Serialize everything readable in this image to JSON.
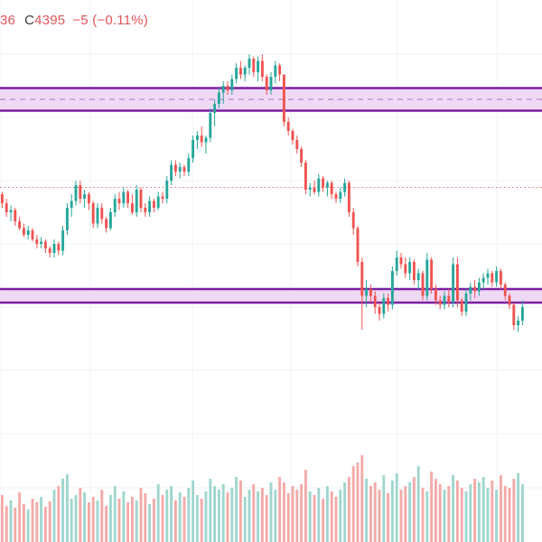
{
  "legend": {
    "partial": "36",
    "close_key": "C",
    "close_value": "4395",
    "change": "−5",
    "change_pct": "(−0.11%)"
  },
  "colors": {
    "up": "#26a69a",
    "down": "#ef5350",
    "volume_up": "#9fd6cf",
    "volume_down": "#f4aaa8",
    "zone_fill": "#f0d9f5",
    "zone_border": "#7b1fa2",
    "grid": "#eef0f4",
    "price_line": "#e57373"
  },
  "chart_data": {
    "type": "candlestick",
    "y_range": [
      4300,
      4460
    ],
    "x_index_range": [
      0,
      124
    ],
    "zones": [
      {
        "top": 4437,
        "bottom": 4427,
        "mid": 4432
      },
      {
        "top": 4348,
        "bottom": 4342
      }
    ],
    "price_line": 4393,
    "candles": [
      [
        4390,
        4391,
        4384,
        4386
      ],
      [
        4386,
        4388,
        4380,
        4382
      ],
      [
        4382,
        4385,
        4378,
        4383
      ],
      [
        4383,
        4384,
        4376,
        4378
      ],
      [
        4378,
        4380,
        4374,
        4375
      ],
      [
        4375,
        4377,
        4371,
        4372
      ],
      [
        4372,
        4376,
        4370,
        4374
      ],
      [
        4374,
        4375,
        4369,
        4370
      ],
      [
        4370,
        4372,
        4366,
        4368
      ],
      [
        4368,
        4371,
        4366,
        4369
      ],
      [
        4369,
        4370,
        4364,
        4366
      ],
      [
        4366,
        4367,
        4362,
        4364
      ],
      [
        4364,
        4370,
        4362,
        4368
      ],
      [
        4368,
        4369,
        4363,
        4365
      ],
      [
        4365,
        4376,
        4363,
        4374
      ],
      [
        4374,
        4386,
        4372,
        4384
      ],
      [
        4384,
        4390,
        4380,
        4387
      ],
      [
        4387,
        4396,
        4385,
        4394
      ],
      [
        4394,
        4396,
        4386,
        4388
      ],
      [
        4388,
        4392,
        4384,
        4390
      ],
      [
        4390,
        4391,
        4383,
        4386
      ],
      [
        4386,
        4387,
        4375,
        4377
      ],
      [
        4377,
        4386,
        4375,
        4384
      ],
      [
        4384,
        4386,
        4377,
        4379
      ],
      [
        4379,
        4380,
        4373,
        4375
      ],
      [
        4375,
        4384,
        4374,
        4382
      ],
      [
        4382,
        4390,
        4380,
        4388
      ],
      [
        4388,
        4391,
        4383,
        4386
      ],
      [
        4386,
        4393,
        4384,
        4391
      ],
      [
        4391,
        4392,
        4384,
        4386
      ],
      [
        4386,
        4390,
        4381,
        4382
      ],
      [
        4382,
        4394,
        4380,
        4392
      ],
      [
        4392,
        4393,
        4382,
        4384
      ],
      [
        4384,
        4386,
        4380,
        4382
      ],
      [
        4382,
        4389,
        4380,
        4387
      ],
      [
        4387,
        4388,
        4382,
        4384
      ],
      [
        4384,
        4391,
        4383,
        4389
      ],
      [
        4389,
        4391,
        4386,
        4388
      ],
      [
        4388,
        4398,
        4386,
        4396
      ],
      [
        4396,
        4405,
        4394,
        4403
      ],
      [
        4403,
        4405,
        4398,
        4400
      ],
      [
        4400,
        4404,
        4397,
        4402
      ],
      [
        4402,
        4403,
        4398,
        4400
      ],
      [
        4400,
        4408,
        4398,
        4406
      ],
      [
        4406,
        4416,
        4404,
        4414
      ],
      [
        4414,
        4418,
        4410,
        4416
      ],
      [
        4416,
        4420,
        4411,
        4413
      ],
      [
        4413,
        4416,
        4408,
        4415
      ],
      [
        4415,
        4428,
        4413,
        4426
      ],
      [
        4426,
        4432,
        4420,
        4430
      ],
      [
        4430,
        4437,
        4428,
        4435
      ],
      [
        4435,
        4440,
        4430,
        4438
      ],
      [
        4438,
        4440,
        4434,
        4436
      ],
      [
        4436,
        4443,
        4434,
        4441
      ],
      [
        4441,
        4448,
        4439,
        4446
      ],
      [
        4446,
        4449,
        4441,
        4443
      ],
      [
        4443,
        4447,
        4440,
        4446
      ],
      [
        4446,
        4452,
        4443,
        4450
      ],
      [
        4450,
        4451,
        4442,
        4444
      ],
      [
        4444,
        4451,
        4440,
        4449
      ],
      [
        4449,
        4452,
        4440,
        4442
      ],
      [
        4442,
        4443,
        4434,
        4436
      ],
      [
        4436,
        4444,
        4434,
        4442
      ],
      [
        4442,
        4449,
        4439,
        4447
      ],
      [
        4447,
        4448,
        4440,
        4443
      ],
      [
        4443,
        4443,
        4420,
        4422
      ],
      [
        4422,
        4424,
        4416,
        4418
      ],
      [
        4418,
        4419,
        4412,
        4414
      ],
      [
        4414,
        4416,
        4408,
        4410
      ],
      [
        4410,
        4411,
        4402,
        4404
      ],
      [
        4404,
        4405,
        4390,
        4392
      ],
      [
        4392,
        4395,
        4389,
        4393
      ],
      [
        4393,
        4396,
        4390,
        4391
      ],
      [
        4391,
        4399,
        4389,
        4397
      ],
      [
        4397,
        4398,
        4391,
        4393
      ],
      [
        4393,
        4396,
        4389,
        4395
      ],
      [
        4395,
        4396,
        4388,
        4390
      ],
      [
        4390,
        4391,
        4386,
        4388
      ],
      [
        4388,
        4393,
        4386,
        4391
      ],
      [
        4391,
        4397,
        4389,
        4395
      ],
      [
        4395,
        4396,
        4380,
        4382
      ],
      [
        4382,
        4384,
        4372,
        4375
      ],
      [
        4375,
        4376,
        4358,
        4360
      ],
      [
        4360,
        4362,
        4330,
        4345
      ],
      [
        4345,
        4352,
        4340,
        4348
      ],
      [
        4348,
        4350,
        4342,
        4345
      ],
      [
        4345,
        4347,
        4337,
        4340
      ],
      [
        4340,
        4342,
        4334,
        4337
      ],
      [
        4337,
        4346,
        4335,
        4344
      ],
      [
        4344,
        4346,
        4338,
        4341
      ],
      [
        4341,
        4358,
        4339,
        4356
      ],
      [
        4356,
        4365,
        4354,
        4362
      ],
      [
        4362,
        4364,
        4357,
        4359
      ],
      [
        4359,
        4362,
        4353,
        4355
      ],
      [
        4355,
        4362,
        4352,
        4360
      ],
      [
        4360,
        4361,
        4350,
        4352
      ],
      [
        4352,
        4357,
        4348,
        4355
      ],
      [
        4355,
        4356,
        4343,
        4345
      ],
      [
        4345,
        4364,
        4343,
        4361
      ],
      [
        4361,
        4362,
        4346,
        4348
      ],
      [
        4348,
        4350,
        4341,
        4343
      ],
      [
        4343,
        4345,
        4339,
        4341
      ],
      [
        4341,
        4347,
        4339,
        4345
      ],
      [
        4345,
        4348,
        4340,
        4342
      ],
      [
        4342,
        4362,
        4340,
        4359
      ],
      [
        4359,
        4362,
        4340,
        4343
      ],
      [
        4343,
        4344,
        4336,
        4338
      ],
      [
        4338,
        4348,
        4336,
        4346
      ],
      [
        4346,
        4351,
        4343,
        4349
      ],
      [
        4349,
        4352,
        4344,
        4347
      ],
      [
        4347,
        4353,
        4345,
        4351
      ],
      [
        4351,
        4355,
        4348,
        4353
      ],
      [
        4353,
        4357,
        4350,
        4355
      ],
      [
        4355,
        4356,
        4349,
        4351
      ],
      [
        4351,
        4358,
        4349,
        4356
      ],
      [
        4356,
        4357,
        4348,
        4350
      ],
      [
        4350,
        4351,
        4343,
        4345
      ],
      [
        4345,
        4346,
        4339,
        4341
      ],
      [
        4341,
        4342,
        4330,
        4332
      ],
      [
        4332,
        4336,
        4329,
        4334
      ],
      [
        4334,
        4343,
        4332,
        4340
      ]
    ],
    "volumes": [
      52,
      40,
      46,
      38,
      55,
      42,
      36,
      48,
      44,
      50,
      39,
      45,
      58,
      62,
      70,
      75,
      48,
      52,
      60,
      55,
      44,
      50,
      46,
      58,
      40,
      52,
      62,
      48,
      56,
      44,
      50,
      46,
      60,
      54,
      42,
      48,
      64,
      52,
      58,
      62,
      46,
      55,
      50,
      60,
      68,
      52,
      48,
      56,
      70,
      62,
      58,
      64,
      55,
      60,
      72,
      68,
      50,
      58,
      64,
      56,
      60,
      52,
      66,
      58,
      72,
      66,
      54,
      62,
      58,
      64,
      80,
      56,
      52,
      60,
      48,
      62,
      56,
      50,
      58,
      66,
      72,
      84,
      88,
      96,
      70,
      62,
      66,
      58,
      74,
      54,
      68,
      76,
      58,
      62,
      66,
      72,
      84,
      60,
      56,
      78,
      70,
      64,
      58,
      62,
      74,
      68,
      60,
      56,
      64,
      70,
      66,
      72,
      60,
      68,
      58,
      74,
      62,
      60,
      70,
      76,
      64
    ],
    "volume_max": 100
  }
}
